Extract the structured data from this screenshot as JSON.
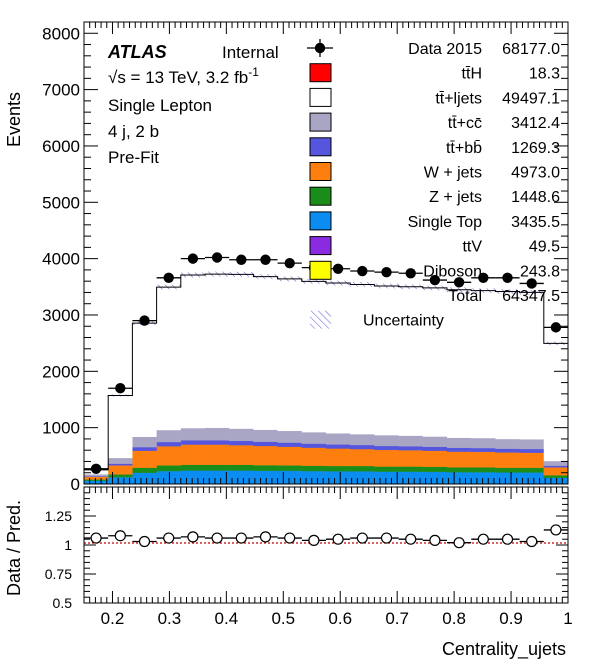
{
  "chart_data": {
    "type": "bar",
    "stacked": true,
    "xlabel": "Centrality_ujets",
    "ylabel": "Events",
    "ratio_ylabel": "Data / Pred.",
    "xlim": [
      0.15,
      1.0
    ],
    "ylim": [
      0,
      8200
    ],
    "ratio_ylim": [
      0.5,
      1.5
    ],
    "x_ticks": [
      0.2,
      0.3,
      0.4,
      0.5,
      0.6,
      0.7,
      0.8,
      0.9,
      1.0
    ],
    "x_tick_labels": [
      "0.2",
      "0.3",
      "0.4",
      "0.5",
      "0.6",
      "0.7",
      "0.8",
      "0.9",
      "1"
    ],
    "y_ticks": [
      0,
      1000,
      2000,
      3000,
      4000,
      5000,
      6000,
      7000,
      8000
    ],
    "y_tick_labels": [
      "0",
      "1000",
      "2000",
      "3000",
      "4000",
      "5000",
      "6000",
      "7000",
      "8000"
    ],
    "ratio_ticks": [
      0.5,
      0.75,
      1.0,
      1.25
    ],
    "ratio_tick_labels": [
      "0.5",
      "0.75",
      "1",
      "1.25"
    ],
    "bin_edges": [
      0.15,
      0.1925,
      0.235,
      0.2775,
      0.32,
      0.3625,
      0.405,
      0.4475,
      0.49,
      0.5325,
      0.575,
      0.6175,
      0.66,
      0.7025,
      0.745,
      0.7875,
      0.83,
      0.8725,
      0.915,
      0.9575,
      1.0
    ],
    "series": [
      {
        "name": "Single Top",
        "color": "#0a8cf0",
        "values": [
          60,
          120,
          200,
          230,
          240,
          240,
          240,
          235,
          235,
          230,
          225,
          225,
          220,
          220,
          215,
          210,
          210,
          205,
          205,
          110
        ]
      },
      {
        "name": "Z + jets",
        "color": "#1a8c1a",
        "values": [
          20,
          50,
          90,
          100,
          100,
          100,
          100,
          100,
          95,
          95,
          95,
          95,
          90,
          90,
          90,
          85,
          85,
          85,
          85,
          45
        ]
      },
      {
        "name": "W + jets",
        "color": "#ff7f0e",
        "values": [
          50,
          160,
          300,
          340,
          360,
          360,
          350,
          340,
          330,
          320,
          310,
          300,
          295,
          290,
          285,
          280,
          275,
          270,
          265,
          140
        ]
      },
      {
        "name": "tt̄+bb̄",
        "color": "#5555dd",
        "values": [
          10,
          30,
          65,
          75,
          75,
          75,
          75,
          75,
          75,
          72,
          72,
          72,
          70,
          70,
          70,
          68,
          68,
          66,
          66,
          30
        ]
      },
      {
        "name": "tt̄+cc̄",
        "color": "#a8a6c4",
        "values": [
          30,
          100,
          180,
          210,
          215,
          220,
          215,
          210,
          205,
          200,
          195,
          190,
          190,
          185,
          180,
          175,
          175,
          170,
          170,
          80
        ]
      },
      {
        "name": "tt̄+ljets",
        "color": "#ffffff",
        "values": [
          80,
          1110,
          2020,
          2540,
          2720,
          2730,
          2740,
          2720,
          2700,
          2680,
          2670,
          2660,
          2650,
          2645,
          2640,
          2630,
          2620,
          2620,
          2610,
          2090
        ]
      }
    ],
    "data_points": [
      270,
      1700,
      2900,
      3660,
      4000,
      4020,
      3980,
      3980,
      3920,
      3840,
      3820,
      3780,
      3760,
      3740,
      3620,
      3580,
      3660,
      3660,
      3560,
      2780
    ],
    "ratio_values": [
      1.06,
      1.08,
      1.03,
      1.06,
      1.07,
      1.06,
      1.06,
      1.07,
      1.06,
      1.04,
      1.05,
      1.06,
      1.06,
      1.05,
      1.04,
      1.02,
      1.05,
      1.05,
      1.03,
      1.13
    ],
    "legend_placement": "top-right",
    "legend": [
      {
        "label": "Data 2015",
        "value": "68177.0",
        "kind": "data"
      },
      {
        "label": "tt̄H",
        "value": "18.3",
        "kind": "box",
        "color": "#ff0000"
      },
      {
        "label": "tt̄+ljets",
        "value": "49497.1",
        "kind": "box",
        "color": "#ffffff"
      },
      {
        "label": "tt̄+cc̄",
        "value": "3412.4",
        "kind": "box",
        "color": "#a8a6c4"
      },
      {
        "label": "tt̄+bb̄",
        "value": "1269.3",
        "kind": "box",
        "color": "#5555dd"
      },
      {
        "label": "W + jets",
        "value": "4973.0",
        "kind": "box",
        "color": "#ff7f0e"
      },
      {
        "label": "Z + jets",
        "value": "1448.6",
        "kind": "box",
        "color": "#1a8c1a"
      },
      {
        "label": "Single Top",
        "value": "3435.5",
        "kind": "box",
        "color": "#0a8cf0"
      },
      {
        "label": "ttV",
        "value": "49.5",
        "kind": "box",
        "color": "#8a2be2"
      },
      {
        "label": "Diboson",
        "value": "243.8",
        "kind": "box",
        "color": "#ffff00"
      },
      {
        "label": "Total",
        "value": "64347.5",
        "kind": "none"
      },
      {
        "label": "Uncertainty",
        "value": "",
        "kind": "hatch"
      }
    ],
    "annotations": {
      "experiment": "ATLAS",
      "status": "Internal",
      "energy": "√s = 13 TeV, 3.2 fb",
      "energy_sup": "-1",
      "channel": "Single Lepton",
      "selection": "4 j, 2 b",
      "fit": "Pre-Fit"
    }
  }
}
